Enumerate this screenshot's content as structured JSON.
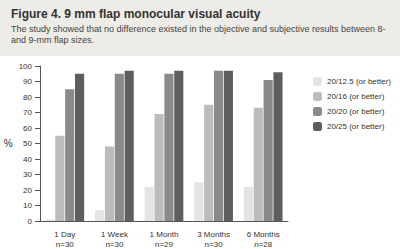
{
  "chart_data": {
    "type": "bar",
    "title": "Figure 4. 9 mm flap monocular visual acuity",
    "subtitle": "The study showed that no difference existed in the objective and subjective results between 8- and 9-mm flap sizes.",
    "y_label": "%",
    "categories": [
      "1 Day\nn=30",
      "1 Week\nn=30",
      "1 Month\nn=29",
      "3 Months\nn=30",
      "6 Months\nn=28"
    ],
    "series": [
      {
        "name": "20/12.5 (or better)",
        "color": "#e4e4e4",
        "values": [
          1,
          7,
          22,
          25,
          22
        ]
      },
      {
        "name": "20/16 (or better)",
        "color": "#bcbcbc",
        "values": [
          55,
          48,
          69,
          75,
          73
        ]
      },
      {
        "name": "20/20 (or better)",
        "color": "#8a8a8a",
        "values": [
          85,
          95,
          95,
          97,
          91
        ]
      },
      {
        "name": "20/25 (or better)",
        "color": "#5e5e5e",
        "values": [
          95,
          97,
          97,
          97,
          96
        ]
      }
    ],
    "ylim": [
      0,
      100
    ],
    "yticks": [
      0,
      10,
      20,
      30,
      40,
      50,
      60,
      70,
      80,
      90,
      100
    ],
    "grid": false,
    "legend": "right"
  }
}
